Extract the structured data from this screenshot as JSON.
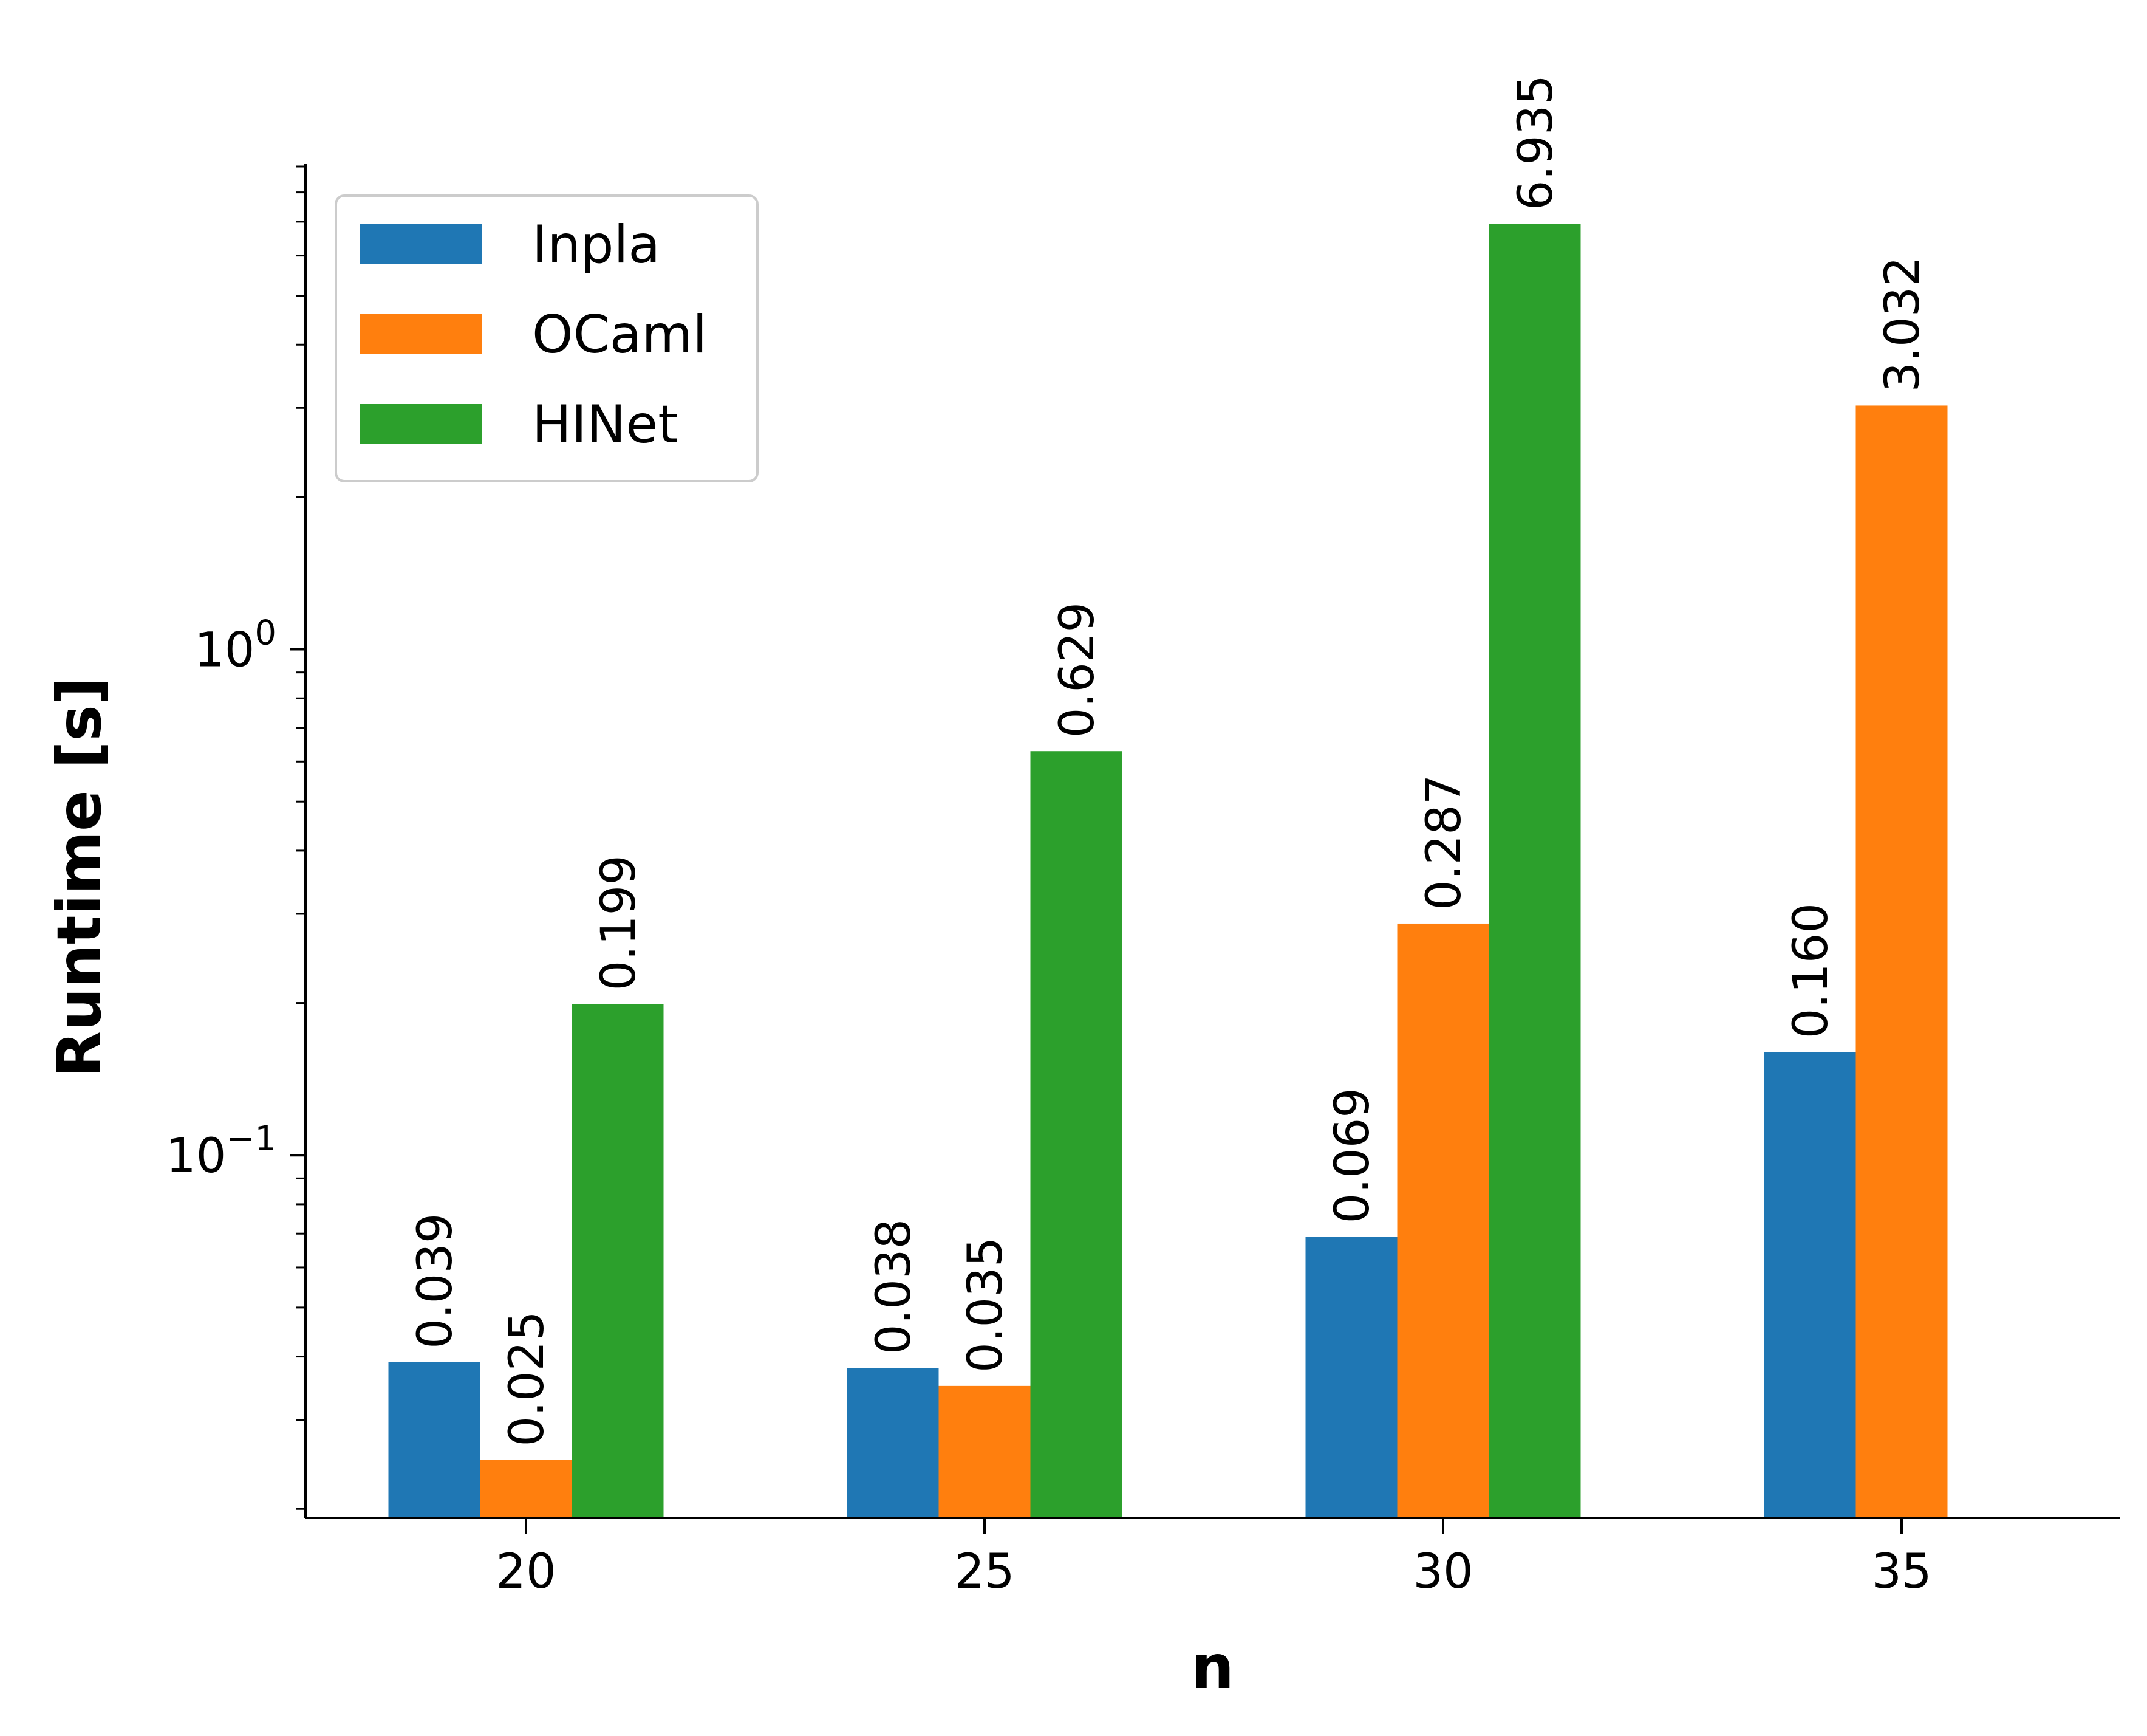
{
  "chart_data": {
    "type": "bar",
    "categories": [
      "20",
      "25",
      "30",
      "35"
    ],
    "series": [
      {
        "name": "Inpla",
        "color": "#1f77b4",
        "values": [
          0.039,
          0.038,
          0.069,
          0.16
        ],
        "labels": [
          "0.039",
          "0.038",
          "0.069",
          "0.160"
        ]
      },
      {
        "name": "OCaml",
        "color": "#ff7f0e",
        "values": [
          0.025,
          0.035,
          0.287,
          3.032
        ],
        "labels": [
          "0.025",
          "0.035",
          "0.287",
          "3.032"
        ]
      },
      {
        "name": "HINet",
        "color": "#2ca02c",
        "values": [
          0.199,
          0.629,
          6.935,
          null
        ],
        "labels": [
          "0.199",
          "0.629",
          "6.935",
          ""
        ]
      }
    ],
    "xlabel": "n",
    "ylabel": "Runtime [s]",
    "yscale": "log",
    "ylim": [
      0.0192,
      9.1
    ],
    "yticks": [
      {
        "value": 1,
        "base": "10",
        "exp": "0"
      },
      {
        "value": 0.1,
        "base": "10",
        "exp": "−1"
      }
    ],
    "grid": false,
    "legend_position": "top-left"
  }
}
